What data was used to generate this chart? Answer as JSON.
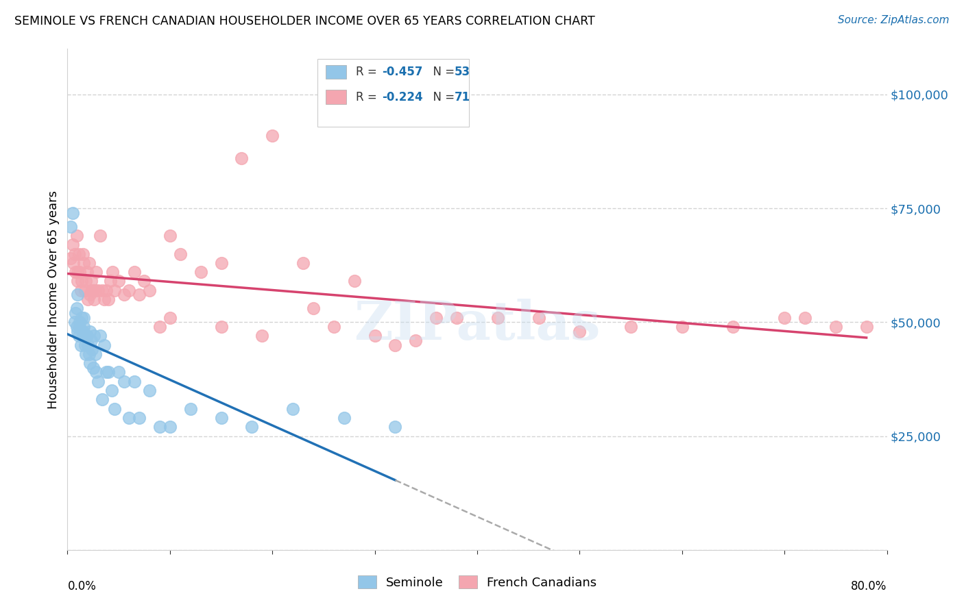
{
  "title": "SEMINOLE VS FRENCH CANADIAN HOUSEHOLDER INCOME OVER 65 YEARS CORRELATION CHART",
  "source": "Source: ZipAtlas.com",
  "ylabel": "Householder Income Over 65 years",
  "xlim": [
    0.0,
    0.8
  ],
  "ylim": [
    0,
    110000
  ],
  "yticks": [
    0,
    25000,
    50000,
    75000,
    100000
  ],
  "ytick_labels": [
    "",
    "$25,000",
    "$50,000",
    "$75,000",
    "$100,000"
  ],
  "watermark_text": "ZIPatlas",
  "seminole_color": "#93c6e8",
  "french_color": "#f4a6b0",
  "seminole_line_color": "#2171b5",
  "french_line_color": "#d6436e",
  "dashed_line_color": "#aaaaaa",
  "grid_color": "#d0d0d0",
  "background_color": "#ffffff",
  "tick_label_color": "#1a6faf",
  "seminole_x": [
    0.003,
    0.005,
    0.007,
    0.008,
    0.009,
    0.009,
    0.01,
    0.01,
    0.011,
    0.012,
    0.012,
    0.013,
    0.014,
    0.015,
    0.015,
    0.016,
    0.016,
    0.017,
    0.018,
    0.018,
    0.019,
    0.02,
    0.021,
    0.022,
    0.022,
    0.023,
    0.024,
    0.025,
    0.026,
    0.027,
    0.028,
    0.03,
    0.032,
    0.034,
    0.036,
    0.038,
    0.04,
    0.043,
    0.046,
    0.05,
    0.055,
    0.06,
    0.065,
    0.07,
    0.08,
    0.09,
    0.1,
    0.12,
    0.15,
    0.18,
    0.22,
    0.27,
    0.32
  ],
  "seminole_y": [
    71000,
    74000,
    50000,
    52000,
    49000,
    53000,
    48000,
    56000,
    47000,
    50000,
    49000,
    45000,
    51000,
    47000,
    48000,
    51000,
    49000,
    45000,
    47000,
    43000,
    47000,
    45000,
    43000,
    41000,
    48000,
    46000,
    44000,
    40000,
    47000,
    43000,
    39000,
    37000,
    47000,
    33000,
    45000,
    39000,
    39000,
    35000,
    31000,
    39000,
    37000,
    29000,
    37000,
    29000,
    35000,
    27000,
    27000,
    31000,
    29000,
    27000,
    31000,
    29000,
    27000
  ],
  "french_x": [
    0.003,
    0.005,
    0.006,
    0.007,
    0.008,
    0.009,
    0.01,
    0.01,
    0.011,
    0.012,
    0.013,
    0.014,
    0.015,
    0.016,
    0.017,
    0.018,
    0.019,
    0.02,
    0.021,
    0.022,
    0.023,
    0.024,
    0.025,
    0.026,
    0.027,
    0.028,
    0.03,
    0.032,
    0.034,
    0.036,
    0.038,
    0.04,
    0.042,
    0.044,
    0.046,
    0.05,
    0.055,
    0.06,
    0.065,
    0.07,
    0.075,
    0.08,
    0.09,
    0.1,
    0.11,
    0.13,
    0.15,
    0.17,
    0.2,
    0.23,
    0.26,
    0.3,
    0.34,
    0.38,
    0.42,
    0.46,
    0.5,
    0.55,
    0.6,
    0.65,
    0.7,
    0.72,
    0.75,
    0.78,
    0.32,
    0.36,
    0.28,
    0.24,
    0.19,
    0.15,
    0.1
  ],
  "french_y": [
    64000,
    67000,
    63000,
    65000,
    61000,
    69000,
    59000,
    61000,
    65000,
    61000,
    57000,
    59000,
    65000,
    63000,
    57000,
    59000,
    61000,
    55000,
    63000,
    56000,
    59000,
    57000,
    57000,
    55000,
    57000,
    61000,
    57000,
    69000,
    57000,
    55000,
    57000,
    55000,
    59000,
    61000,
    57000,
    59000,
    56000,
    57000,
    61000,
    56000,
    59000,
    57000,
    49000,
    51000,
    65000,
    61000,
    63000,
    86000,
    91000,
    63000,
    49000,
    47000,
    46000,
    51000,
    51000,
    51000,
    48000,
    49000,
    49000,
    49000,
    51000,
    51000,
    49000,
    49000,
    45000,
    51000,
    59000,
    53000,
    47000,
    49000,
    69000
  ]
}
